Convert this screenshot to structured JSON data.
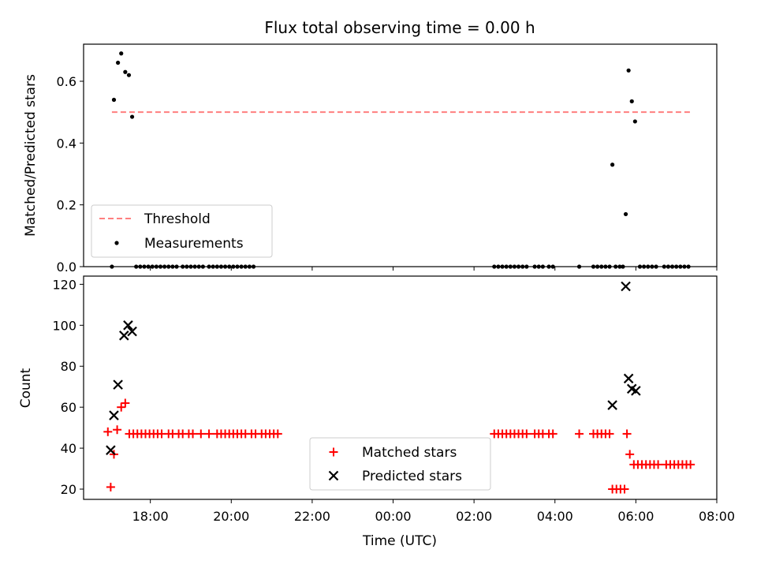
{
  "chart_data": [
    {
      "type": "scatter",
      "title": "Flux total observing time = 0.00 h",
      "ylabel": "Matched/Predicted stars",
      "xlabel": "",
      "ylim": [
        0,
        0.72
      ],
      "yticks": [
        "0.0",
        "0.2",
        "0.4",
        "0.6"
      ],
      "ytick_values": [
        0,
        0.2,
        0.4,
        0.6
      ],
      "grid": false,
      "legend_position": "lower-left",
      "threshold": {
        "name": "Threshold",
        "value": 0.5,
        "x_start": -6.95,
        "x_end": 7.35,
        "color": "#ff7f7f",
        "style": "dashed"
      },
      "measurements": {
        "name": "Measurements",
        "color": "#000000",
        "points": [
          [
            -6.95,
            0.0
          ],
          [
            -6.9,
            0.54
          ],
          [
            -6.8,
            0.66
          ],
          [
            -6.72,
            0.69
          ],
          [
            -6.62,
            0.63
          ],
          [
            -6.53,
            0.62
          ],
          [
            -6.45,
            0.485
          ],
          [
            -6.35,
            0.0
          ],
          [
            -6.25,
            0.0
          ],
          [
            -6.15,
            0.0
          ],
          [
            -6.05,
            0.0
          ],
          [
            -5.95,
            0.0
          ],
          [
            -5.85,
            0.0
          ],
          [
            -5.75,
            0.0
          ],
          [
            -5.65,
            0.0
          ],
          [
            -5.55,
            0.0
          ],
          [
            -5.45,
            0.0
          ],
          [
            -5.35,
            0.0
          ],
          [
            -5.2,
            0.0
          ],
          [
            -5.1,
            0.0
          ],
          [
            -5.0,
            0.0
          ],
          [
            -4.9,
            0.0
          ],
          [
            -4.8,
            0.0
          ],
          [
            -4.7,
            0.0
          ],
          [
            -4.55,
            0.0
          ],
          [
            -4.45,
            0.0
          ],
          [
            -4.35,
            0.0
          ],
          [
            -4.25,
            0.0
          ],
          [
            -4.15,
            0.0
          ],
          [
            -4.05,
            0.0
          ],
          [
            -3.95,
            0.0
          ],
          [
            -3.85,
            0.0
          ],
          [
            -3.75,
            0.0
          ],
          [
            -3.65,
            0.0
          ],
          [
            -3.55,
            0.0
          ],
          [
            -3.45,
            0.0
          ],
          [
            2.5,
            0.0
          ],
          [
            2.6,
            0.0
          ],
          [
            2.7,
            0.0
          ],
          [
            2.8,
            0.0
          ],
          [
            2.9,
            0.0
          ],
          [
            3.0,
            0.0
          ],
          [
            3.1,
            0.0
          ],
          [
            3.2,
            0.0
          ],
          [
            3.3,
            0.0
          ],
          [
            3.5,
            0.0
          ],
          [
            3.6,
            0.0
          ],
          [
            3.7,
            0.0
          ],
          [
            3.85,
            0.0
          ],
          [
            3.95,
            0.0
          ],
          [
            4.6,
            0.0
          ],
          [
            4.95,
            0.0
          ],
          [
            5.05,
            0.0
          ],
          [
            5.15,
            0.0
          ],
          [
            5.25,
            0.0
          ],
          [
            5.35,
            0.0
          ],
          [
            5.42,
            0.33
          ],
          [
            5.5,
            0.0
          ],
          [
            5.6,
            0.0
          ],
          [
            5.68,
            0.0
          ],
          [
            5.75,
            0.17
          ],
          [
            5.82,
            0.635
          ],
          [
            5.9,
            0.535
          ],
          [
            5.98,
            0.47
          ],
          [
            6.1,
            0.0
          ],
          [
            6.2,
            0.0
          ],
          [
            6.3,
            0.0
          ],
          [
            6.4,
            0.0
          ],
          [
            6.5,
            0.0
          ],
          [
            6.7,
            0.0
          ],
          [
            6.8,
            0.0
          ],
          [
            6.9,
            0.0
          ],
          [
            7.0,
            0.0
          ],
          [
            7.1,
            0.0
          ],
          [
            7.2,
            0.0
          ],
          [
            7.3,
            0.0
          ]
        ]
      }
    },
    {
      "type": "scatter",
      "title": "",
      "ylabel": "Count",
      "xlabel": "Time (UTC)",
      "xlim": [
        -7.65,
        8.0
      ],
      "ylim": [
        15,
        124
      ],
      "xticks": [
        "18:00",
        "20:00",
        "22:00",
        "00:00",
        "02:00",
        "04:00",
        "06:00",
        "08:00"
      ],
      "xtick_values": [
        -6,
        -4,
        -2,
        0,
        2,
        4,
        6,
        8
      ],
      "yticks": [
        "20",
        "40",
        "60",
        "80",
        "100",
        "120"
      ],
      "ytick_values": [
        20,
        40,
        60,
        80,
        100,
        120
      ],
      "grid": false,
      "legend_position": "lower-center",
      "series": [
        {
          "name": "Matched stars",
          "marker": "plus",
          "color": "#ff0000",
          "points": [
            [
              -7.05,
              48
            ],
            [
              -6.98,
              21
            ],
            [
              -6.9,
              37
            ],
            [
              -6.82,
              49
            ],
            [
              -6.72,
              60
            ],
            [
              -6.62,
              62
            ],
            [
              -6.52,
              47
            ],
            [
              -6.42,
              47
            ],
            [
              -6.32,
              47
            ],
            [
              -6.22,
              47
            ],
            [
              -6.12,
              47
            ],
            [
              -6.02,
              47
            ],
            [
              -5.92,
              47
            ],
            [
              -5.82,
              47
            ],
            [
              -5.72,
              47
            ],
            [
              -5.55,
              47
            ],
            [
              -5.45,
              47
            ],
            [
              -5.3,
              47
            ],
            [
              -5.2,
              47
            ],
            [
              -5.05,
              47
            ],
            [
              -4.95,
              47
            ],
            [
              -4.75,
              47
            ],
            [
              -4.55,
              47
            ],
            [
              -4.35,
              47
            ],
            [
              -4.25,
              47
            ],
            [
              -4.15,
              47
            ],
            [
              -4.05,
              47
            ],
            [
              -3.95,
              47
            ],
            [
              -3.85,
              47
            ],
            [
              -3.75,
              47
            ],
            [
              -3.65,
              47
            ],
            [
              -3.5,
              47
            ],
            [
              -3.4,
              47
            ],
            [
              -3.25,
              47
            ],
            [
              -3.15,
              47
            ],
            [
              -3.05,
              47
            ],
            [
              -2.95,
              47
            ],
            [
              -2.85,
              47
            ],
            [
              2.5,
              47
            ],
            [
              2.6,
              47
            ],
            [
              2.7,
              47
            ],
            [
              2.8,
              47
            ],
            [
              2.9,
              47
            ],
            [
              3.0,
              47
            ],
            [
              3.1,
              47
            ],
            [
              3.2,
              47
            ],
            [
              3.3,
              47
            ],
            [
              3.5,
              47
            ],
            [
              3.6,
              47
            ],
            [
              3.7,
              47
            ],
            [
              3.85,
              47
            ],
            [
              3.95,
              47
            ],
            [
              4.6,
              47
            ],
            [
              4.95,
              47
            ],
            [
              5.05,
              47
            ],
            [
              5.15,
              47
            ],
            [
              5.25,
              47
            ],
            [
              5.35,
              47
            ],
            [
              5.42,
              20
            ],
            [
              5.52,
              20
            ],
            [
              5.62,
              20
            ],
            [
              5.72,
              20
            ],
            [
              5.78,
              47
            ],
            [
              5.85,
              37
            ],
            [
              5.95,
              32
            ],
            [
              6.05,
              32
            ],
            [
              6.15,
              32
            ],
            [
              6.25,
              32
            ],
            [
              6.35,
              32
            ],
            [
              6.45,
              32
            ],
            [
              6.55,
              32
            ],
            [
              6.75,
              32
            ],
            [
              6.85,
              32
            ],
            [
              6.95,
              32
            ],
            [
              7.05,
              32
            ],
            [
              7.15,
              32
            ],
            [
              7.25,
              32
            ],
            [
              7.35,
              32
            ]
          ]
        },
        {
          "name": "Predicted stars",
          "marker": "x",
          "color": "#000000",
          "points": [
            [
              -6.98,
              39
            ],
            [
              -6.9,
              56
            ],
            [
              -6.8,
              71
            ],
            [
              -6.65,
              95
            ],
            [
              -6.55,
              100
            ],
            [
              -6.45,
              97
            ],
            [
              5.42,
              61
            ],
            [
              5.75,
              119
            ],
            [
              5.82,
              74
            ],
            [
              5.9,
              69
            ],
            [
              6.0,
              68
            ]
          ]
        }
      ]
    }
  ]
}
